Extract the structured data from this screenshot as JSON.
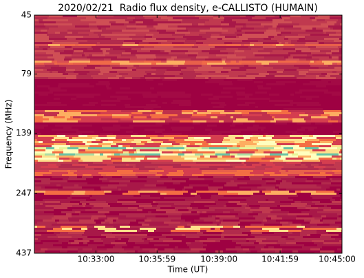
{
  "chart_data": {
    "type": "spectrogram",
    "title": "2020/02/21  Radio flux density, e-CALLISTO (HUMAIN)",
    "x_label": "Time (UT)",
    "y_label": "Frequency (MHz)",
    "xlim": [
      "10:30:00",
      "10:45:00"
    ],
    "xticks": [
      "10:33:00",
      "10:35:59",
      "10:39:00",
      "10:41:59",
      "10:45:00"
    ],
    "ylim": [
      45,
      437
    ],
    "yticks": [
      45,
      79,
      139,
      247,
      437
    ],
    "y_scale": "log",
    "y_inverted": true
  }
}
